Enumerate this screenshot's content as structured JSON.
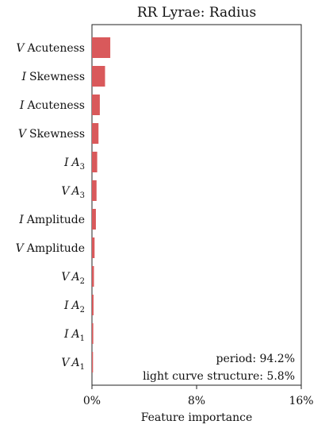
{
  "chart_data": {
    "type": "bar",
    "orientation": "horizontal",
    "title": "RR Lyrae: Radius",
    "xlabel": "Feature importance",
    "ylabel": "",
    "xlim": [
      0,
      16
    ],
    "xticks": [
      0,
      8,
      16
    ],
    "xtick_labels": [
      "0%",
      "8%",
      "16%"
    ],
    "bar_color": "#d9595b",
    "grid": false,
    "categories": [
      {
        "band": "V",
        "name": "Acuteness",
        "sub": ""
      },
      {
        "band": "I",
        "name": "Skewness",
        "sub": ""
      },
      {
        "band": "I",
        "name": "Acuteness",
        "sub": ""
      },
      {
        "band": "V",
        "name": "Skewness",
        "sub": ""
      },
      {
        "band": "I",
        "name": "A",
        "sub": "3"
      },
      {
        "band": "V",
        "name": "A",
        "sub": "3"
      },
      {
        "band": "I",
        "name": "Amplitude",
        "sub": ""
      },
      {
        "band": "V",
        "name": "Amplitude",
        "sub": ""
      },
      {
        "band": "V",
        "name": "A",
        "sub": "2"
      },
      {
        "band": "I",
        "name": "A",
        "sub": "2"
      },
      {
        "band": "I",
        "name": "A",
        "sub": "1"
      },
      {
        "band": "V",
        "name": "A",
        "sub": "1"
      }
    ],
    "values": [
      1.4,
      1.0,
      0.6,
      0.5,
      0.4,
      0.35,
      0.3,
      0.2,
      0.15,
      0.12,
      0.1,
      0.08
    ],
    "annotations": [
      "period: 94.2%",
      "light curve structure: 5.8%"
    ]
  }
}
